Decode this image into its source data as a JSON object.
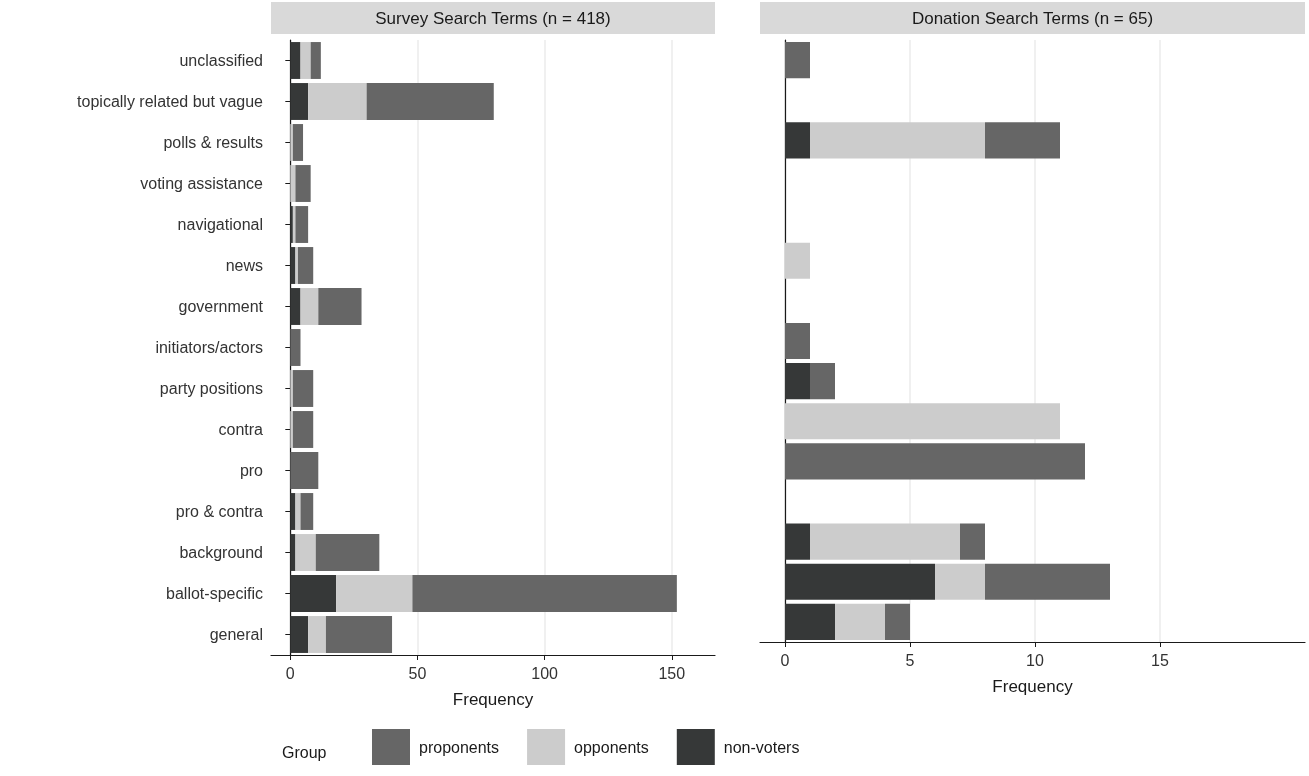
{
  "chart_data": [
    {
      "type": "bar",
      "orientation": "horizontal",
      "stacked": true,
      "title": "Survey Search Terms (n = 418)",
      "xlabel": "Frequency",
      "categories": [
        "unclassified",
        "topically related but vague",
        "polls & results",
        "voting assistance",
        "navigational",
        "news",
        "government",
        "initiators/actors",
        "party positions",
        "contra",
        "pro",
        "pro & contra",
        "background",
        "ballot-specific",
        "general"
      ],
      "series": [
        {
          "name": "non-voters",
          "color": "#363838",
          "values": [
            4,
            7,
            0,
            0,
            1,
            2,
            4,
            0,
            0,
            0,
            0,
            2,
            2,
            18,
            7
          ]
        },
        {
          "name": "opponents",
          "color": "#cccccc",
          "values": [
            4,
            23,
            1,
            2,
            1,
            1,
            7,
            0,
            1,
            1,
            0,
            2,
            8,
            30,
            7
          ]
        },
        {
          "name": "proponents",
          "color": "#666666",
          "values": [
            4,
            50,
            4,
            6,
            5,
            6,
            17,
            4,
            8,
            8,
            11,
            5,
            25,
            104,
            26
          ]
        }
      ],
      "xlim": [
        -7.6,
        167
      ],
      "xticks": [
        0,
        50,
        100,
        150
      ],
      "grid": "x",
      "legend": "bottom",
      "legend_title": "Group"
    },
    {
      "type": "bar",
      "orientation": "horizontal",
      "stacked": true,
      "title": "Donation Search Terms (n = 65)",
      "xlabel": "Frequency",
      "categories": [
        null,
        null,
        null,
        null,
        null,
        null,
        null,
        null,
        null,
        null,
        null,
        null,
        null,
        null,
        null
      ],
      "series": [
        {
          "color": "#363838",
          "values": [
            0,
            0,
            1,
            0,
            0,
            0,
            0,
            0,
            1,
            0,
            0,
            0,
            1,
            6,
            2
          ]
        },
        {
          "color": "#cccccc",
          "values": [
            0,
            0,
            7,
            0,
            0,
            1,
            0,
            0,
            0,
            11,
            0,
            0,
            6,
            2,
            2
          ]
        },
        {
          "color": "#666666",
          "values": [
            1,
            0,
            3,
            0,
            0,
            0,
            0,
            1,
            1,
            0,
            12,
            0,
            1,
            5,
            1
          ]
        }
      ],
      "xlim": [
        -1,
        20.8
      ],
      "xticks": [
        0,
        5,
        10,
        15
      ],
      "grid": "x",
      "tick_labels": "x"
    }
  ]
}
